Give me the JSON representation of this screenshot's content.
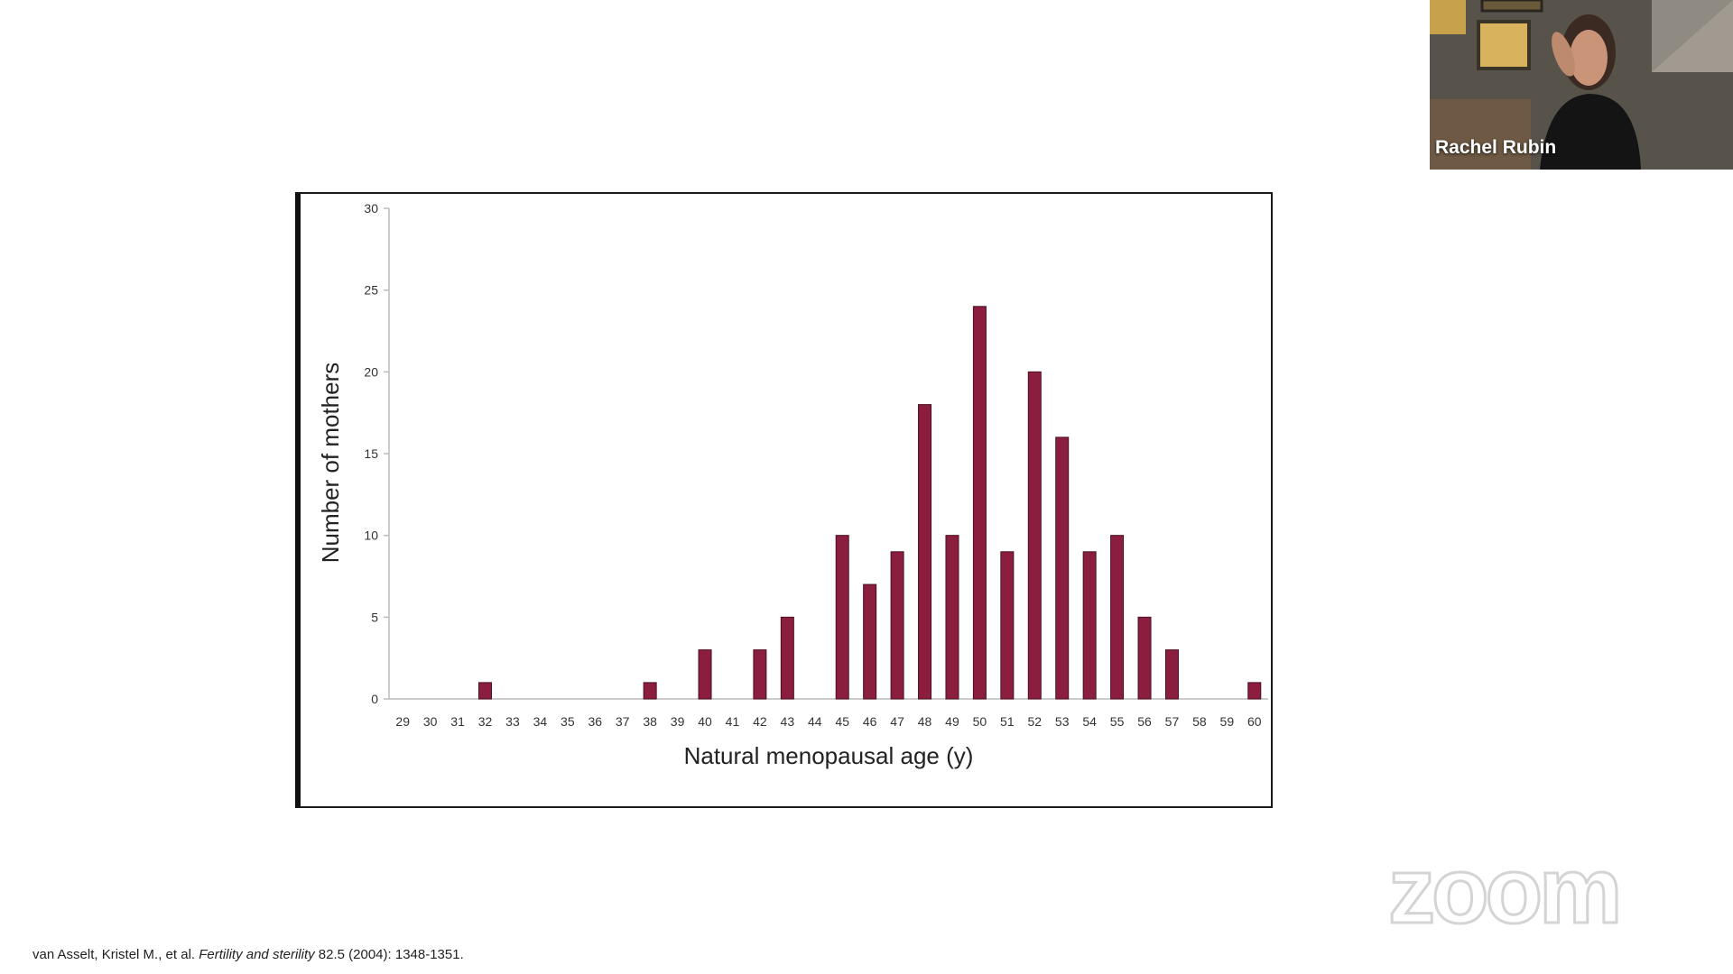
{
  "chart_data": {
    "type": "bar",
    "xlabel": "Natural menopausal age (y)",
    "ylabel": "Number of mothers",
    "ylim": [
      0,
      30
    ],
    "yticks": [
      "0",
      "5",
      "10",
      "15",
      "20",
      "25",
      "30"
    ],
    "categories": [
      "29",
      "30",
      "31",
      "32",
      "33",
      "34",
      "35",
      "36",
      "37",
      "38",
      "39",
      "40",
      "41",
      "42",
      "43",
      "44",
      "45",
      "46",
      "47",
      "48",
      "49",
      "50",
      "51",
      "52",
      "53",
      "54",
      "55",
      "56",
      "57",
      "58",
      "59",
      "60"
    ],
    "values": [
      0,
      0,
      0,
      1,
      0,
      0,
      0,
      0,
      0,
      1,
      0,
      3,
      0,
      3,
      5,
      0,
      10,
      7,
      9,
      18,
      10,
      24,
      9,
      20,
      16,
      9,
      10,
      5,
      3,
      0,
      0,
      1
    ],
    "bar_color": "#8b1e3f",
    "grid": false
  },
  "citation": {
    "authors": "van Asselt, Kristel M., et al.",
    "journal": "Fertility and sterility",
    "details": "82.5 (2004): 1348-1351."
  },
  "video": {
    "participant_name": "Rachel Rubin"
  },
  "watermark": {
    "text": "zoom"
  }
}
